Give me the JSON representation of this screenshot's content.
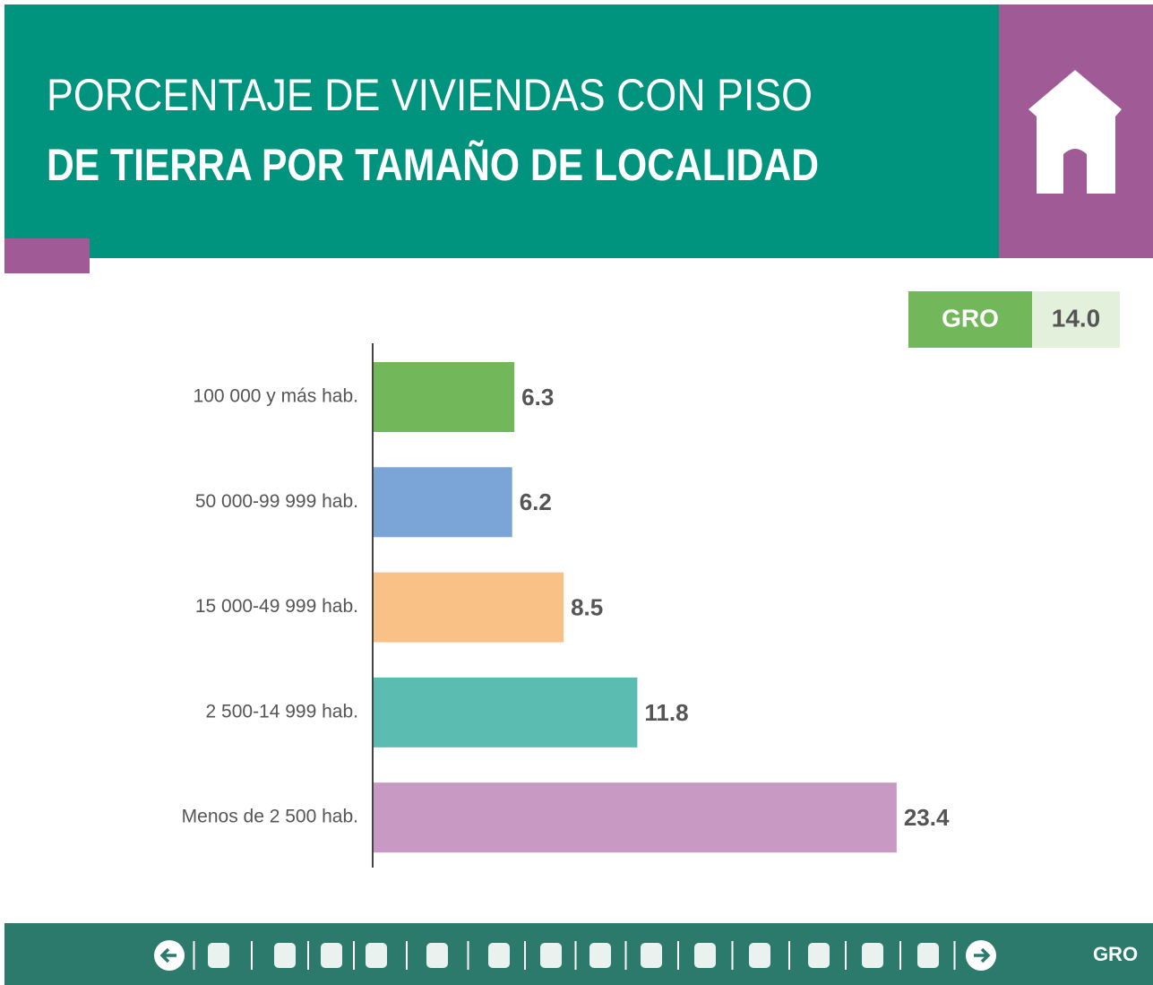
{
  "chart_data": {
    "type": "bar",
    "orientation": "horizontal",
    "title_lines": [
      "PORCENTAJE DE VIVIENDAS CON PISO",
      "DE TIERRA POR TAMAÑO DE LOCALIDAD"
    ],
    "badge": {
      "label": "GRO",
      "value": 14,
      "value_label": "14.0"
    },
    "categories": [
      "100 000 y más hab.",
      "50 000-99 999 hab.",
      "15 000-49 999 hab.",
      "2 500-14 999 hab.",
      "Menos de 2 500 hab."
    ],
    "values": [
      6.3,
      6.2,
      8.5,
      11.8,
      23.4
    ],
    "colors": [
      "#72b85a",
      "#7ba5d6",
      "#f9c185",
      "#5bbdb1",
      "#c899c2"
    ],
    "footer_label": "GRO"
  }
}
